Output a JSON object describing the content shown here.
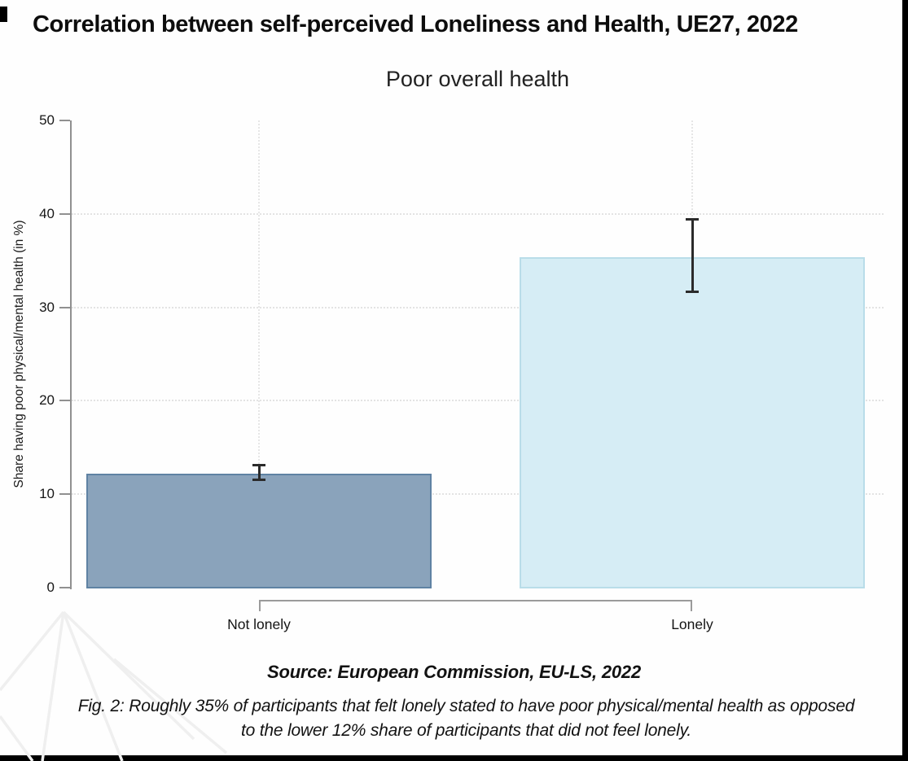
{
  "page": {
    "title": "Correlation between self-perceived Loneliness and Health, UE27, 2022",
    "source": "Source: European Commission, EU-LS, 2022",
    "caption": "Fig. 2: Roughly 35% of participants that felt lonely stated to have poor physical/mental health as opposed to the lower 12% share of participants that did not feel lonely."
  },
  "chart_data": {
    "type": "bar",
    "title": "Poor overall health",
    "categories": [
      "Not lonely",
      "Lonely"
    ],
    "values": [
      12.2,
      35.4
    ],
    "error_low": [
      11.5,
      31.7
    ],
    "error_high": [
      13.1,
      39.4
    ],
    "xlabel": "",
    "ylabel": "Share having poor physical/mental health (in %)",
    "ylim": [
      0,
      50
    ],
    "yticks": [
      0,
      10,
      20,
      30,
      40,
      50
    ],
    "grid": "dotted horizontal at inner yticks, dotted vertical at category centers",
    "legend_position": "none",
    "bar_colors": [
      "#8aa3bb",
      "#d6edf5"
    ],
    "bar_border_colors": [
      "#5f82a3",
      "#b9dde9"
    ],
    "error_color": "#2b2b2b"
  }
}
